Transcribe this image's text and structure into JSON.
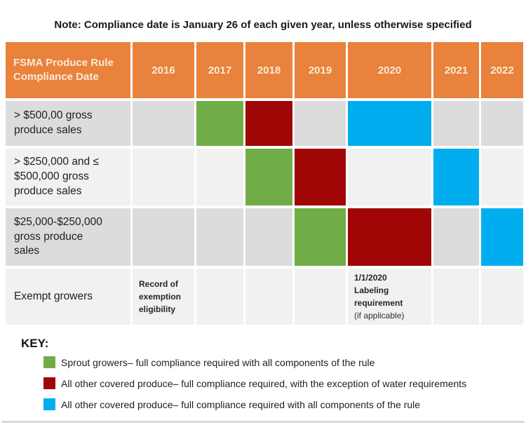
{
  "note": "Note: Compliance date is January 26 of each given year, unless otherwise specified",
  "colors": {
    "orange": "#E8823C",
    "green": "#70AD47",
    "red": "#A00606",
    "blue": "#00AEEF",
    "header_text": "#FBEBD5",
    "row_dark": "#DCDCDC",
    "row_light": "#F1F1F0"
  },
  "table": {
    "header_label": "FSMA Produce Rule Compliance Date",
    "years": [
      "2016",
      "2017",
      "2018",
      "2019",
      "2020",
      "2021",
      "2022"
    ],
    "rows": [
      {
        "label": "> $500,00 gross produce sales",
        "fills": {
          "2017": "green",
          "2018": "red",
          "2020": "blue"
        }
      },
      {
        "label": "> $250,000 and ≤ $500,000 gross produce sales",
        "fills": {
          "2018": "green",
          "2019": "red",
          "2021": "blue"
        }
      },
      {
        "label": "$25,000-$250,000 gross produce sales",
        "fills": {
          "2019": "green",
          "2020": "red",
          "2022": "blue"
        }
      },
      {
        "label": "Exempt growers",
        "fills": {},
        "notes": {
          "2016": "Record of exemption eligibility",
          "2020_bold_line1": "1/1/2020",
          "2020_bold_line2": "Labeling requirement",
          "2020_regular": "(if applicable)"
        }
      }
    ]
  },
  "key": {
    "title": "KEY:",
    "entries": [
      {
        "swatch": "green",
        "label": "Sprout growers– full compliance required with all components of the rule"
      },
      {
        "swatch": "red",
        "label": "All other covered produce– full compliance required, with the exception of water requirements"
      },
      {
        "swatch": "blue",
        "label": "All other covered produce– full compliance required with all components of the rule"
      }
    ]
  },
  "chart_data": {
    "type": "table",
    "title": "Note: Compliance date is January 26 of each given year, unless otherwise specified",
    "columns": [
      "FSMA Produce Rule Compliance Date",
      "2016",
      "2017",
      "2018",
      "2019",
      "2020",
      "2021",
      "2022"
    ],
    "rows": [
      {
        "label": "> $500,00 gross produce sales",
        "sprout_growers_full_compliance": "2017",
        "covered_produce_except_water": "2018",
        "covered_produce_full_compliance": "2020"
      },
      {
        "label": "> $250,000 and ≤ $500,000 gross produce sales",
        "sprout_growers_full_compliance": "2018",
        "covered_produce_except_water": "2019",
        "covered_produce_full_compliance": "2021"
      },
      {
        "label": "$25,000-$250,000 gross produce sales",
        "sprout_growers_full_compliance": "2019",
        "covered_produce_except_water": "2020",
        "covered_produce_full_compliance": "2022"
      },
      {
        "label": "Exempt growers",
        "2016_note": "Record of exemption eligibility",
        "2020_note": "1/1/2020 Labeling requirement (if applicable)"
      }
    ],
    "legend": [
      {
        "color": "#70AD47",
        "meaning": "Sprout growers– full compliance required with all components of the rule"
      },
      {
        "color": "#A00606",
        "meaning": "All other covered produce– full compliance required, with the exception of water requirements"
      },
      {
        "color": "#00AEEF",
        "meaning": "All other covered produce– full compliance required with all components of the rule"
      }
    ]
  }
}
